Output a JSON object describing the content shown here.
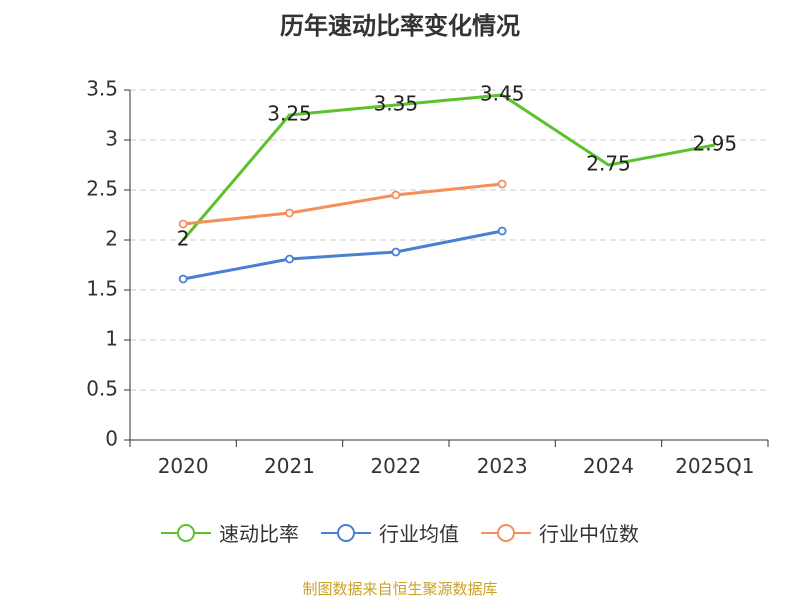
{
  "title": "历年速动比率变化情况",
  "source": "制图数据来自恒生聚源数据库",
  "chart_data": {
    "type": "line",
    "categories": [
      "2020",
      "2021",
      "2022",
      "2023",
      "2024",
      "2025Q1"
    ],
    "ylim": [
      0,
      3.5
    ],
    "yticks": [
      0,
      0.5,
      1,
      1.5,
      2,
      2.5,
      3,
      3.5
    ],
    "ytick_labels": [
      "0",
      "0.5",
      "1",
      "1.5",
      "2",
      "2.5",
      "3",
      "3.5"
    ],
    "grid": true,
    "legend_position": "bottom",
    "series": [
      {
        "name": "速动比率",
        "color": "#5cc22b",
        "values": [
          2,
          3.25,
          3.35,
          3.45,
          2.75,
          2.95
        ],
        "labels": [
          "2",
          "3.25",
          "3.35",
          "3.45",
          "2.75",
          "2.95"
        ],
        "markers": false
      },
      {
        "name": "行业均值",
        "color": "#4a7fd4",
        "values": [
          1.61,
          1.81,
          1.88,
          2.09,
          null,
          null
        ],
        "markers": true
      },
      {
        "name": "行业中位数",
        "color": "#f58f5a",
        "values": [
          2.16,
          2.27,
          2.45,
          2.56,
          null,
          null
        ],
        "markers": true
      }
    ]
  }
}
